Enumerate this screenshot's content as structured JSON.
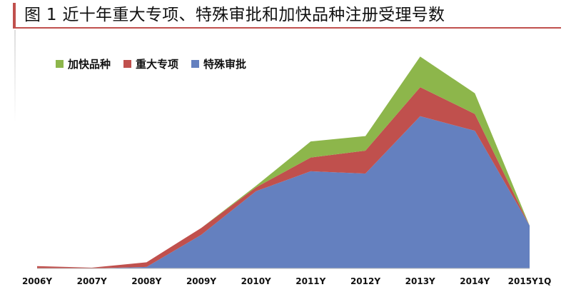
{
  "title": "图 1  近十年重大专项、特殊审批和加快品种注册受理号数",
  "chart_data": {
    "type": "area",
    "stacked": true,
    "categories": [
      "2006Y",
      "2007Y",
      "2008Y",
      "2009Y",
      "2010Y",
      "2011Y",
      "2012Y",
      "2013Y",
      "2014Y",
      "2015Y1Q"
    ],
    "series": [
      {
        "name": "特殊审批",
        "color": "#6480bf",
        "values": [
          0,
          0,
          2,
          44,
          101,
          127,
          124,
          199,
          180,
          56
        ]
      },
      {
        "name": "重大专项",
        "color": "#c0504d",
        "values": [
          3,
          1,
          6,
          9,
          5,
          18,
          30,
          38,
          22,
          0
        ]
      },
      {
        "name": "加快品种",
        "color": "#8db64b",
        "values": [
          0,
          0,
          0,
          0,
          2,
          21,
          19,
          40,
          27,
          0
        ]
      }
    ],
    "legend_order": [
      "加快品种",
      "重大专项",
      "特殊审批"
    ],
    "legend_position": "top-left",
    "ylim": [
      0,
      280
    ],
    "grid": false,
    "y_axis_visible": false
  }
}
